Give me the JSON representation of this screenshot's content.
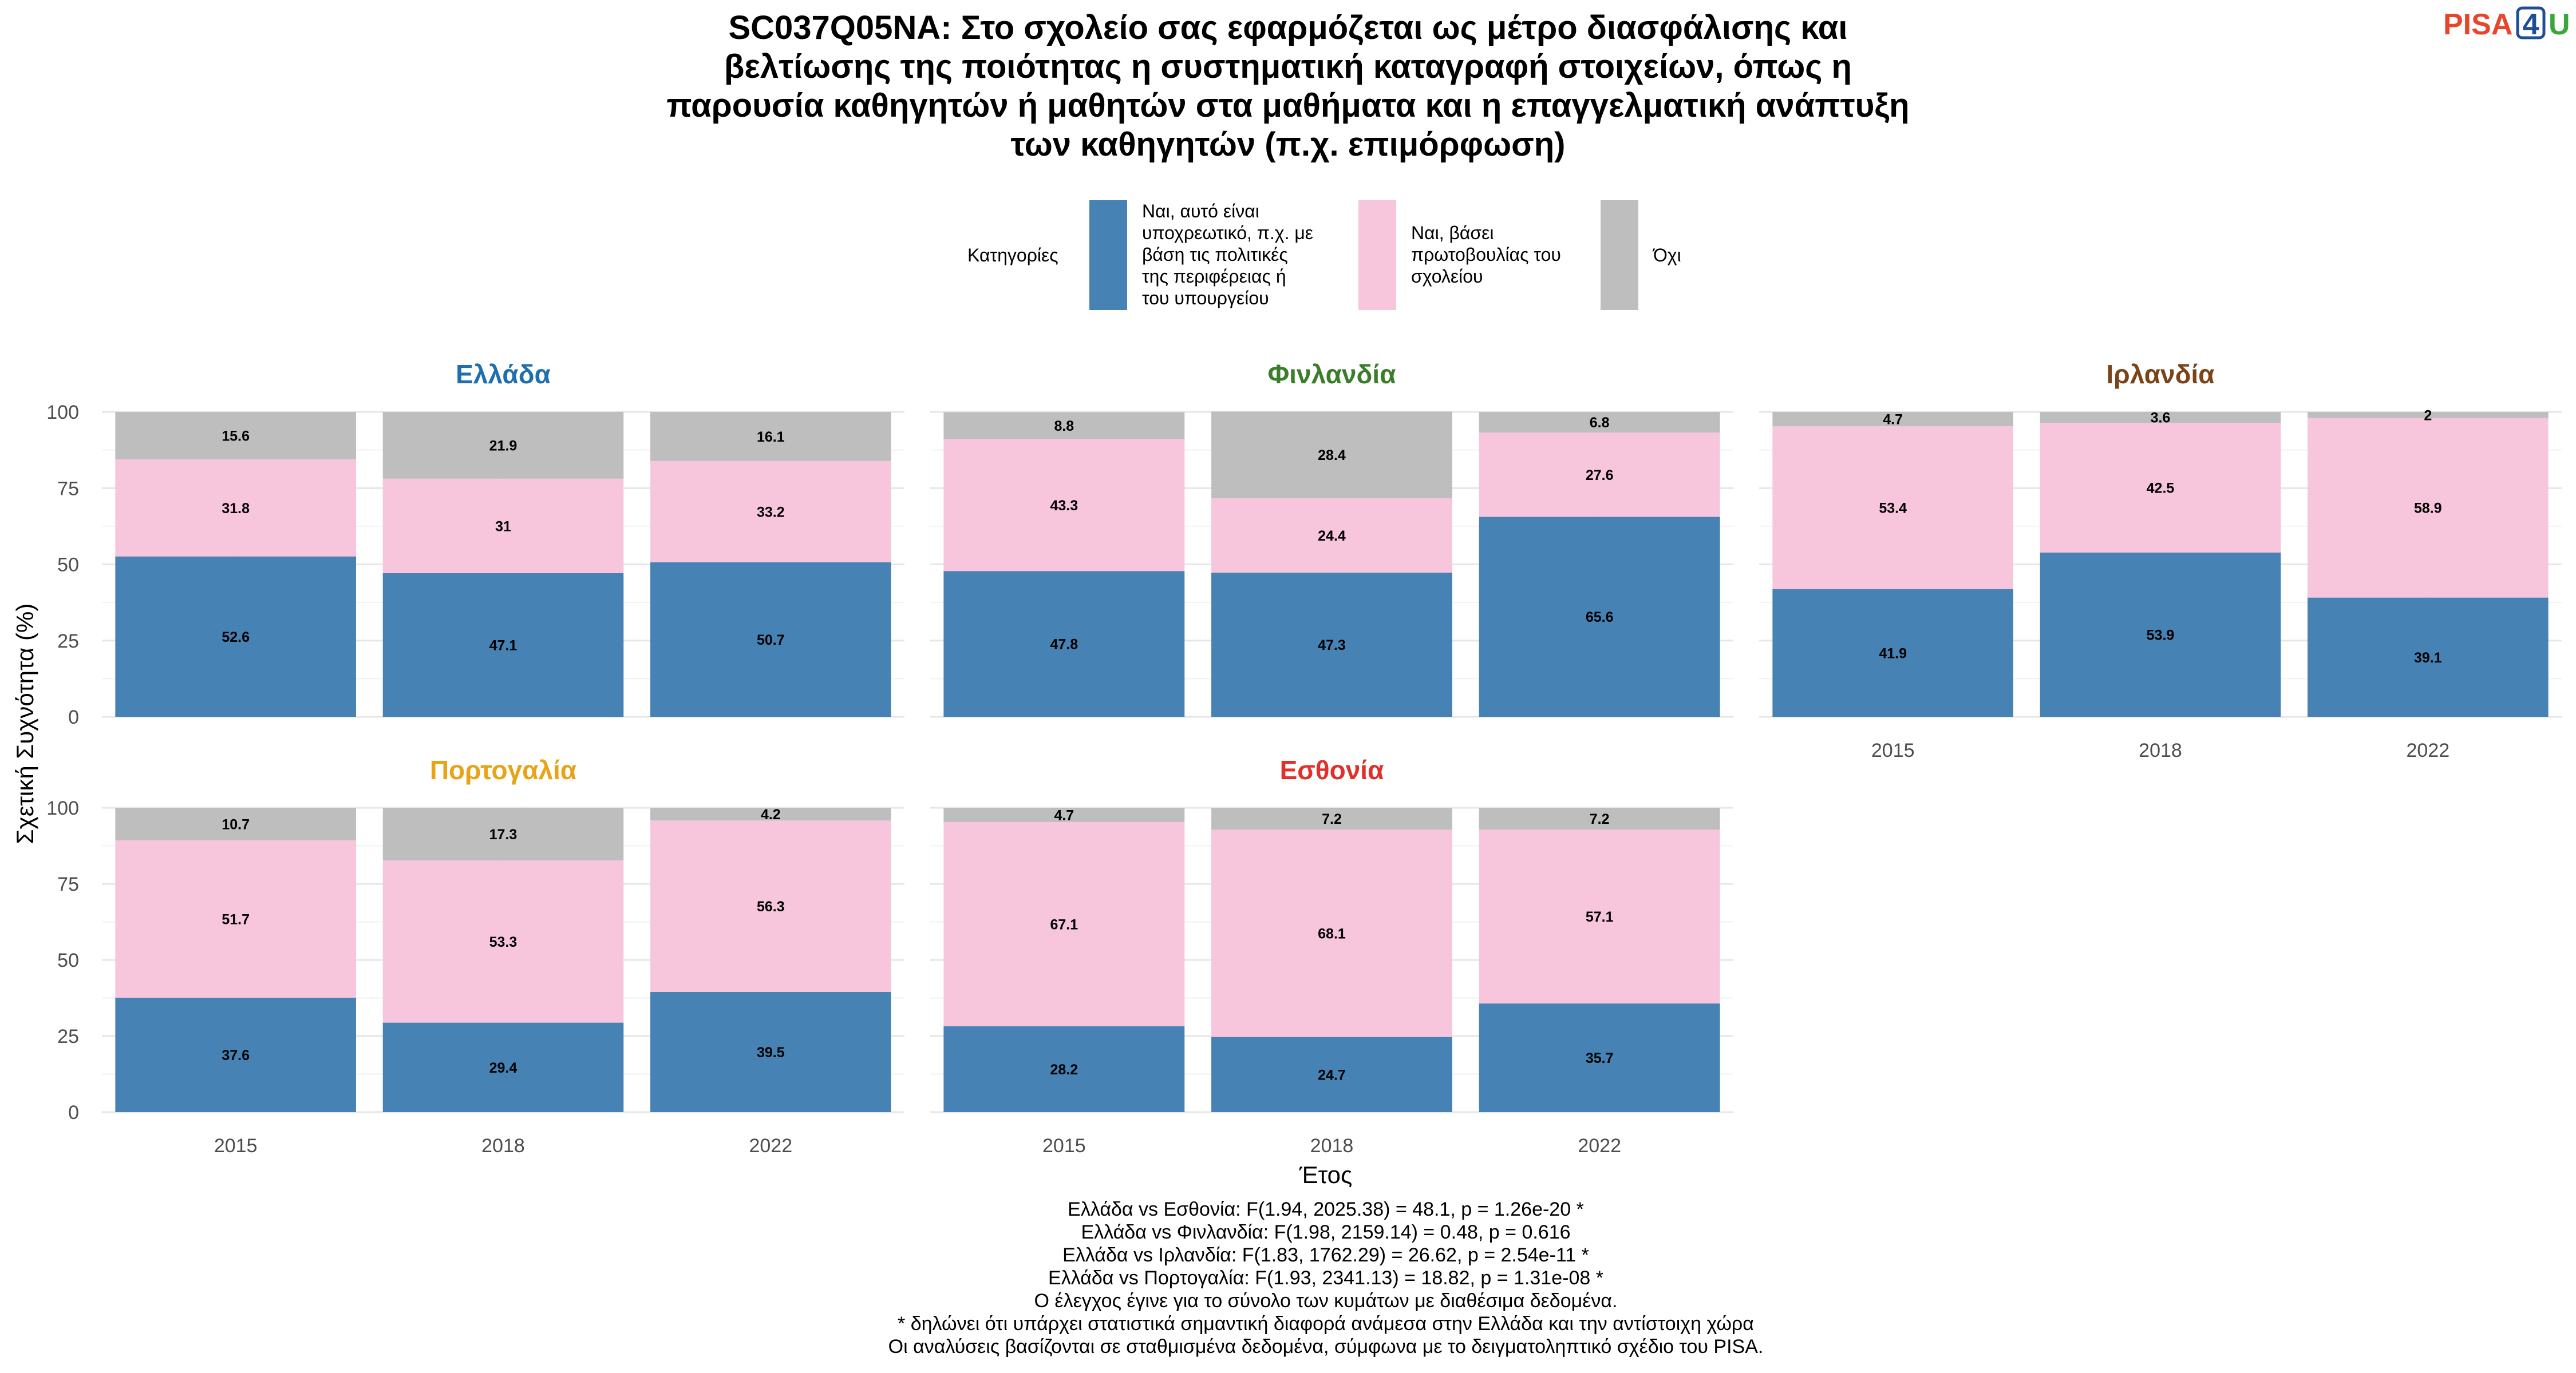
{
  "title_lines": [
    "SC037Q05NA: Στο σχολείο σας εφαρμόζεται ως μέτρο διασφάλισης και",
    "βελτίωσης της ποιότητας η συστηματική καταγραφή στοιχείων, όπως η",
    "παρουσία καθηγητών ή μαθητών στα μαθήματα και η επαγγελματική ανάπτυξη",
    "των καθηγητών (π.χ. επιμόρφωση)"
  ],
  "logo": {
    "part1": "PISA",
    "part2": "4",
    "part3": "U",
    "color1": "#e8462b",
    "color2": "#1f4e99",
    "color3": "#3aa53a"
  },
  "legend": {
    "title": "Κατηγορίες",
    "items": [
      {
        "lines": [
          "Ναι, αυτό είναι",
          "υποχρεωτικό, π.χ. με",
          "βάση τις πολιτικές",
          "της περιφέρειας ή",
          "του υπουργείου"
        ],
        "color": "#4682b4"
      },
      {
        "lines": [
          "Ναι, βάσει",
          "πρωτοβουλίας του",
          "σχολείου"
        ],
        "color": "#f7c6dc"
      },
      {
        "lines": [
          "Όχι"
        ],
        "color": "#bebebe"
      }
    ]
  },
  "axes": {
    "ylabel": "Σχετική Συχνότητα (%)",
    "xlabel": "Έτος",
    "yticks": [
      "0",
      "25",
      "50",
      "75",
      "100"
    ]
  },
  "chart_data": {
    "type": "bar",
    "stacked": true,
    "categories": [
      "2015",
      "2018",
      "2022"
    ],
    "ylim": [
      0,
      100
    ],
    "grid": true,
    "legend_position": "top",
    "series_names": [
      "Ναι, αυτό είναι υποχρεωτικό, π.χ. με βάση τις πολιτικές της περιφέρειας ή του υπουργείου",
      "Ναι, βάσει πρωτοβουλίας του σχολείου",
      "Όχι"
    ],
    "series_colors": [
      "#4682b4",
      "#f7c6dc",
      "#bebebe"
    ],
    "panels": [
      {
        "name": "Ελλάδα",
        "color": "#1f6fae",
        "values": [
          [
            52.6,
            31.8,
            15.6
          ],
          [
            47.1,
            31,
            21.9
          ],
          [
            50.7,
            33.2,
            16.1
          ]
        ]
      },
      {
        "name": "Φινλανδία",
        "color": "#3a7d2a",
        "values": [
          [
            47.8,
            43.3,
            8.8
          ],
          [
            47.3,
            24.4,
            28.4
          ],
          [
            65.6,
            27.6,
            6.8
          ]
        ]
      },
      {
        "name": "Ιρλανδία",
        "color": "#7a4418",
        "values": [
          [
            41.9,
            53.4,
            4.7
          ],
          [
            53.9,
            42.5,
            3.6
          ],
          [
            39.1,
            58.9,
            2
          ]
        ]
      },
      {
        "name": "Πορτογαλία",
        "color": "#e8a317",
        "values": [
          [
            37.6,
            51.7,
            10.7
          ],
          [
            29.4,
            53.3,
            17.3
          ],
          [
            39.5,
            56.3,
            4.2
          ]
        ]
      },
      {
        "name": "Εσθονία",
        "color": "#e0302a",
        "values": [
          [
            28.2,
            67.1,
            4.7
          ],
          [
            24.7,
            68.1,
            7.2
          ],
          [
            35.7,
            57.1,
            7.2
          ]
        ]
      }
    ]
  },
  "notes": [
    "Ελλάδα vs Εσθονία: F(1.94, 2025.38) = 48.1, p = 1.26e-20 *",
    "Ελλάδα vs Φινλανδία: F(1.98, 2159.14) = 0.48, p = 0.616",
    "Ελλάδα vs Ιρλανδία: F(1.83, 1762.29) = 26.62, p = 2.54e-11 *",
    "Ελλάδα vs Πορτογαλία: F(1.93, 2341.13) = 18.82, p = 1.31e-08 *",
    "Ο έλεγχος έγινε για το σύνολο των κυμάτων με διαθέσιμα δεδομένα.",
    "* δηλώνει ότι υπάρχει στατιστικά σημαντική διαφορά ανάμεσα στην Ελλάδα και την αντίστοιχη χώρα",
    "Οι αναλύσεις βασίζονται σε σταθμισμένα δεδομένα, σύμφωνα με το δειγματοληπτικό σχέδιο του PISA."
  ]
}
